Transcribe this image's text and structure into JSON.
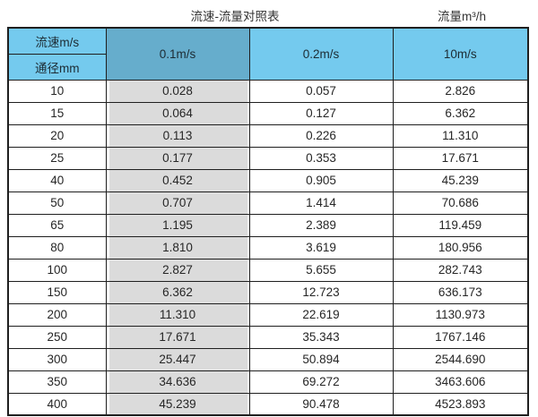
{
  "header": {
    "left_title": "流速-流量对照表",
    "right_title": "流量m³/h"
  },
  "table": {
    "corner_top": "流速m/s",
    "corner_bottom": "通径mm",
    "velocity_headers": [
      "0.1m/s",
      "0.2m/s",
      "10m/s"
    ],
    "rows": [
      [
        "10",
        "0.028",
        "0.057",
        "2.826"
      ],
      [
        "15",
        "0.064",
        "0.127",
        "6.362"
      ],
      [
        "20",
        "0.113",
        "0.226",
        "11.310"
      ],
      [
        "25",
        "0.177",
        "0.353",
        "17.671"
      ],
      [
        "40",
        "0.452",
        "0.905",
        "45.239"
      ],
      [
        "50",
        "0.707",
        "1.414",
        "70.686"
      ],
      [
        "65",
        "1.195",
        "2.389",
        "119.459"
      ],
      [
        "80",
        "1.810",
        "3.619",
        "180.956"
      ],
      [
        "100",
        "2.827",
        "5.655",
        "282.743"
      ],
      [
        "150",
        "6.362",
        "12.723",
        "636.173"
      ],
      [
        "200",
        "11.310",
        "22.619",
        "1130.973"
      ],
      [
        "250",
        "17.671",
        "35.343",
        "1767.146"
      ],
      [
        "300",
        "25.447",
        "50.894",
        "2544.690"
      ],
      [
        "350",
        "34.636",
        "69.272",
        "3463.606"
      ],
      [
        "400",
        "45.239",
        "90.478",
        "4523.893"
      ]
    ]
  },
  "chart_data": {
    "type": "table",
    "title": "流速-流量对照表",
    "unit_label": "流量m³/h",
    "row_header_label": "通径mm",
    "column_header_label": "流速m/s",
    "diameters_mm": [
      10,
      15,
      20,
      25,
      40,
      50,
      65,
      80,
      100,
      150,
      200,
      250,
      300,
      350,
      400
    ],
    "series": [
      {
        "name": "0.1m/s",
        "values": [
          0.028,
          0.064,
          0.113,
          0.177,
          0.452,
          0.707,
          1.195,
          1.81,
          2.827,
          6.362,
          11.31,
          17.671,
          25.447,
          34.636,
          45.239
        ]
      },
      {
        "name": "0.2m/s",
        "values": [
          0.057,
          0.127,
          0.226,
          0.353,
          0.905,
          1.414,
          2.389,
          3.619,
          5.655,
          12.723,
          22.619,
          35.343,
          50.894,
          69.272,
          90.478
        ]
      },
      {
        "name": "10m/s",
        "values": [
          2.826,
          6.362,
          11.31,
          17.671,
          45.239,
          70.686,
          119.459,
          180.956,
          282.743,
          636.173,
          1130.973,
          1767.146,
          2544.69,
          3463.606,
          4523.893
        ]
      }
    ]
  },
  "colors": {
    "header_blue": "#74caee",
    "header_blue_dark": "#66adcc",
    "highlight_gray": "#dbdbdb",
    "border": "#1f1f1f",
    "background": "#ffffff"
  }
}
